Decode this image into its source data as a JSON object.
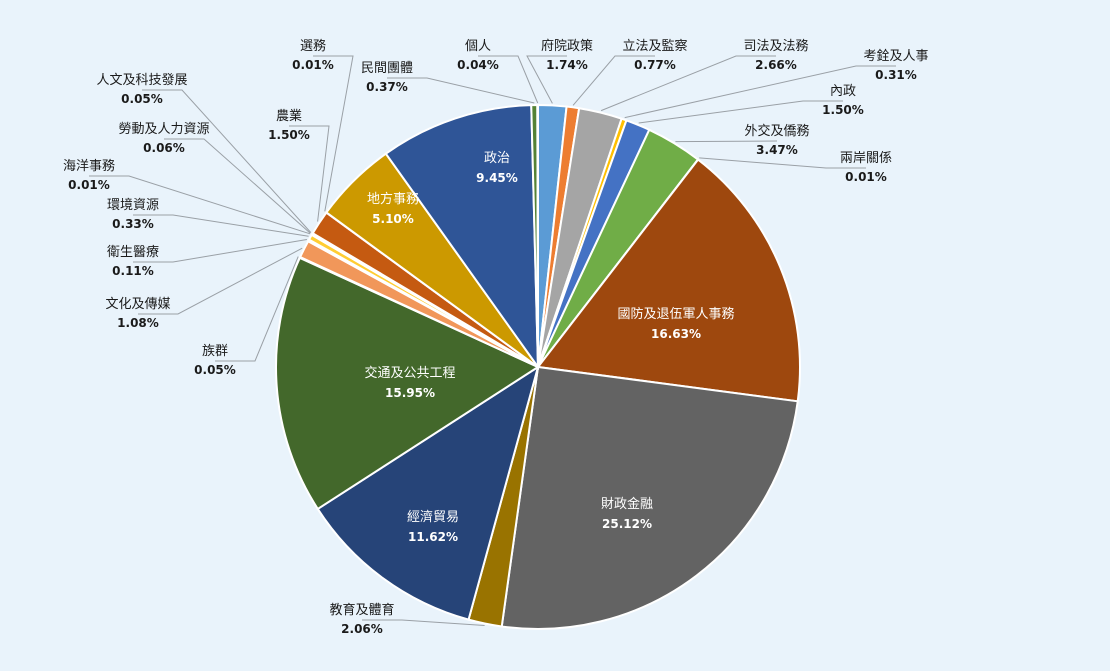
{
  "chart_data": {
    "type": "pie",
    "title": "",
    "start": "12 o'clock",
    "direction": "clockwise",
    "slices": [
      {
        "name": "府院政策",
        "label": "1.74%",
        "value": 1.74,
        "color": "#5b9bd5"
      },
      {
        "name": "立法及監察",
        "label": "0.77%",
        "value": 0.77,
        "color": "#ed7d31"
      },
      {
        "name": "司法及法務",
        "label": "2.66%",
        "value": 2.66,
        "color": "#a5a5a5"
      },
      {
        "name": "考銓及人事",
        "label": "0.31%",
        "value": 0.31,
        "color": "#ffc000"
      },
      {
        "name": "內政",
        "label": "1.50%",
        "value": 1.5,
        "color": "#4472c4"
      },
      {
        "name": "外交及僑務",
        "label": "3.47%",
        "value": 3.47,
        "color": "#70ad47"
      },
      {
        "name": "兩岸關係",
        "label": "0.01%",
        "value": 0.01,
        "color": "#264478"
      },
      {
        "name": "國防及退伍軍人事務",
        "label": "16.63%",
        "value": 16.63,
        "color": "#9e480e"
      },
      {
        "name": "財政金融",
        "label": "25.12%",
        "value": 25.12,
        "color": "#636363"
      },
      {
        "name": "教育及體育",
        "label": "2.06%",
        "value": 2.06,
        "color": "#997300"
      },
      {
        "name": "經濟貿易",
        "label": "11.62%",
        "value": 11.62,
        "color": "#264478"
      },
      {
        "name": "交通及公共工程",
        "label": "15.95%",
        "value": 15.95,
        "color": "#43682b"
      },
      {
        "name": "族群",
        "label": "0.05%",
        "value": 0.05,
        "color": "#7cafdd"
      },
      {
        "name": "文化及傳媒",
        "label": "1.08%",
        "value": 1.08,
        "color": "#f1975a"
      },
      {
        "name": "衛生醫療",
        "label": "0.11%",
        "value": 0.11,
        "color": "#b7b7b7"
      },
      {
        "name": "環境資源",
        "label": "0.33%",
        "value": 0.33,
        "color": "#ffcd33"
      },
      {
        "name": "海洋事務",
        "label": "0.01%",
        "value": 0.01,
        "color": "#698ed0"
      },
      {
        "name": "勞動及人力資源",
        "label": "0.06%",
        "value": 0.06,
        "color": "#8cc168"
      },
      {
        "name": "人文及科技發展",
        "label": "0.05%",
        "value": 0.05,
        "color": "#2f5597"
      },
      {
        "name": "農業",
        "label": "1.50%",
        "value": 1.5,
        "color": "#c55a11"
      },
      {
        "name": "選務",
        "label": "0.01%",
        "value": 0.01,
        "color": "#7f7f7f"
      },
      {
        "name": "地方事務",
        "label": "5.10%",
        "value": 5.1,
        "color": "#cc9900"
      },
      {
        "name": "政治",
        "label": "9.45%",
        "value": 9.45,
        "color": "#2f5597"
      },
      {
        "name": "民間團體",
        "label": "0.37%",
        "value": 0.37,
        "color": "#548235"
      },
      {
        "name": "個人",
        "label": "0.04%",
        "value": 0.04,
        "color": "#8faadc"
      }
    ]
  }
}
